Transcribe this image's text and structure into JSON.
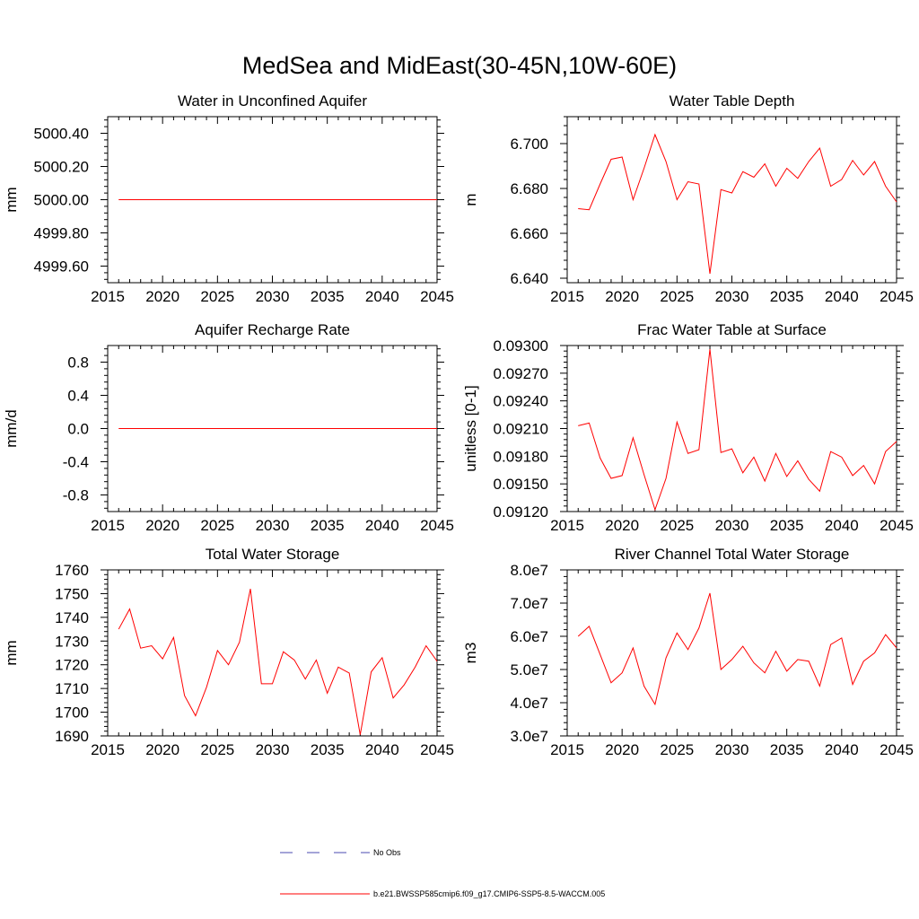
{
  "figure": {
    "title": "MedSea and MidEast(30-45N,10W-60E)",
    "legend": [
      {
        "label": "No Obs",
        "color": "#4a4ab0",
        "style": "dashed"
      },
      {
        "label": "b.e21.BWSSP585cmip6.f09_g17.CMIP6-SSP5-8.5-WACCM.005",
        "color": "#ff0000",
        "style": "solid"
      }
    ]
  },
  "chart_data": [
    {
      "type": "line",
      "title": "Water in Unconfined Aquifer",
      "xlabel": "",
      "ylabel": "mm",
      "xlim": [
        2015,
        2045
      ],
      "ylim": [
        4999.5,
        5000.5
      ],
      "xticks": [
        2015,
        2020,
        2025,
        2030,
        2035,
        2040,
        2045
      ],
      "yticks": [
        4999.6,
        4999.8,
        5000.0,
        5000.2,
        5000.4
      ],
      "ytick_labels": [
        "4999.60",
        "4999.80",
        "5000.00",
        "5000.20",
        "5000.40"
      ],
      "x": [
        2016,
        2017,
        2018,
        2019,
        2020,
        2021,
        2022,
        2023,
        2024,
        2025,
        2026,
        2027,
        2028,
        2029,
        2030,
        2031,
        2032,
        2033,
        2034,
        2035,
        2036,
        2037,
        2038,
        2039,
        2040,
        2041,
        2042,
        2043,
        2044,
        2045
      ],
      "series": [
        {
          "name": "b.e21.BWSSP585cmip6.f09_g17.CMIP6-SSP5-8.5-WACCM.005",
          "color": "#ff0000",
          "values": [
            5000,
            5000,
            5000,
            5000,
            5000,
            5000,
            5000,
            5000,
            5000,
            5000,
            5000,
            5000,
            5000,
            5000,
            5000,
            5000,
            5000,
            5000,
            5000,
            5000,
            5000,
            5000,
            5000,
            5000,
            5000,
            5000,
            5000,
            5000,
            5000,
            5000
          ]
        }
      ]
    },
    {
      "type": "line",
      "title": "Water Table Depth",
      "xlabel": "",
      "ylabel": "m",
      "xlim": [
        2015,
        2045
      ],
      "ylim": [
        6.638,
        6.712
      ],
      "xticks": [
        2015,
        2020,
        2025,
        2030,
        2035,
        2040,
        2045
      ],
      "yticks": [
        6.64,
        6.66,
        6.68,
        6.7
      ],
      "ytick_labels": [
        "6.640",
        "6.660",
        "6.680",
        "6.700"
      ],
      "x": [
        2016,
        2017,
        2018,
        2019,
        2020,
        2021,
        2022,
        2023,
        2024,
        2025,
        2026,
        2027,
        2028,
        2029,
        2030,
        2031,
        2032,
        2033,
        2034,
        2035,
        2036,
        2037,
        2038,
        2039,
        2040,
        2041,
        2042,
        2043,
        2044,
        2045
      ],
      "series": [
        {
          "name": "b.e21.BWSSP585cmip6.f09_g17.CMIP6-SSP5-8.5-WACCM.005",
          "color": "#ff0000",
          "values": [
            6.671,
            6.6705,
            6.682,
            6.693,
            6.694,
            6.675,
            6.689,
            6.704,
            6.692,
            6.675,
            6.683,
            6.682,
            6.642,
            6.6795,
            6.678,
            6.6875,
            6.685,
            6.691,
            6.681,
            6.689,
            6.6845,
            6.692,
            6.698,
            6.681,
            6.684,
            6.6925,
            6.686,
            6.692,
            6.681,
            6.674
          ]
        }
      ]
    },
    {
      "type": "line",
      "title": "Aquifer Recharge Rate",
      "xlabel": "",
      "ylabel": "mm/d",
      "xlim": [
        2015,
        2045
      ],
      "ylim": [
        -1.0,
        1.0
      ],
      "xticks": [
        2015,
        2020,
        2025,
        2030,
        2035,
        2040,
        2045
      ],
      "yticks": [
        -0.8,
        -0.4,
        0.0,
        0.4,
        0.8
      ],
      "ytick_labels": [
        "-0.8",
        "-0.4",
        "0.0",
        "0.4",
        "0.8"
      ],
      "x": [
        2016,
        2017,
        2018,
        2019,
        2020,
        2021,
        2022,
        2023,
        2024,
        2025,
        2026,
        2027,
        2028,
        2029,
        2030,
        2031,
        2032,
        2033,
        2034,
        2035,
        2036,
        2037,
        2038,
        2039,
        2040,
        2041,
        2042,
        2043,
        2044,
        2045
      ],
      "series": [
        {
          "name": "b.e21.BWSSP585cmip6.f09_g17.CMIP6-SSP5-8.5-WACCM.005",
          "color": "#ff0000",
          "values": [
            0,
            0,
            0,
            0,
            0,
            0,
            0,
            0,
            0,
            0,
            0,
            0,
            0,
            0,
            0,
            0,
            0,
            0,
            0,
            0,
            0,
            0,
            0,
            0,
            0,
            0,
            0,
            0,
            0,
            0
          ]
        }
      ]
    },
    {
      "type": "line",
      "title": "Frac Water Table at Surface",
      "xlabel": "",
      "ylabel": "unitless [0-1]",
      "xlim": [
        2015,
        2045
      ],
      "ylim": [
        0.0912,
        0.093
      ],
      "xticks": [
        2015,
        2020,
        2025,
        2030,
        2035,
        2040,
        2045
      ],
      "yticks": [
        0.0912,
        0.0915,
        0.0918,
        0.0921,
        0.0924,
        0.0927,
        0.093
      ],
      "ytick_labels": [
        "0.09120",
        "0.09150",
        "0.09180",
        "0.09210",
        "0.09240",
        "0.09270",
        "0.09300"
      ],
      "x": [
        2016,
        2017,
        2018,
        2019,
        2020,
        2021,
        2022,
        2023,
        2024,
        2025,
        2026,
        2027,
        2028,
        2029,
        2030,
        2031,
        2032,
        2033,
        2034,
        2035,
        2036,
        2037,
        2038,
        2039,
        2040,
        2041,
        2042,
        2043,
        2044,
        2045
      ],
      "series": [
        {
          "name": "b.e21.BWSSP585cmip6.f09_g17.CMIP6-SSP5-8.5-WACCM.005",
          "color": "#ff0000",
          "values": [
            0.09213,
            0.09216,
            0.09178,
            0.09156,
            0.09159,
            0.092,
            0.0916,
            0.09122,
            0.09156,
            0.09217,
            0.09183,
            0.09187,
            0.09296,
            0.09184,
            0.09188,
            0.09162,
            0.09179,
            0.09153,
            0.09183,
            0.09158,
            0.09175,
            0.09155,
            0.09142,
            0.09185,
            0.09179,
            0.09159,
            0.0917,
            0.0915,
            0.09185,
            0.09196
          ]
        }
      ]
    },
    {
      "type": "line",
      "title": "Total Water Storage",
      "xlabel": "",
      "ylabel": "mm",
      "xlim": [
        2015,
        2045
      ],
      "ylim": [
        1690,
        1760
      ],
      "xticks": [
        2015,
        2020,
        2025,
        2030,
        2035,
        2040,
        2045
      ],
      "yticks": [
        1690,
        1700,
        1710,
        1720,
        1730,
        1740,
        1750,
        1760
      ],
      "ytick_labels": [
        "1690",
        "1700",
        "1710",
        "1720",
        "1730",
        "1740",
        "1750",
        "1760"
      ],
      "x": [
        2016,
        2017,
        2018,
        2019,
        2020,
        2021,
        2022,
        2023,
        2024,
        2025,
        2026,
        2027,
        2028,
        2029,
        2030,
        2031,
        2032,
        2033,
        2034,
        2035,
        2036,
        2037,
        2038,
        2039,
        2040,
        2041,
        2042,
        2043,
        2044,
        2045
      ],
      "series": [
        {
          "name": "b.e21.BWSSP585cmip6.f09_g17.CMIP6-SSP5-8.5-WACCM.005",
          "color": "#ff0000",
          "values": [
            1735,
            1743.5,
            1727,
            1728,
            1722.5,
            1731.5,
            1707,
            1698.5,
            1710.5,
            1726,
            1720,
            1729.5,
            1752,
            1712,
            1712,
            1725.5,
            1722,
            1714,
            1722,
            1708,
            1719,
            1716.5,
            1690.5,
            1717,
            1723,
            1706,
            1711.5,
            1719,
            1728,
            1721.5
          ]
        }
      ]
    },
    {
      "type": "line",
      "title": "River Channel Total Water Storage",
      "xlabel": "",
      "ylabel": "m3",
      "xlim": [
        2015,
        2045
      ],
      "ylim": [
        30000000,
        80000000
      ],
      "xticks": [
        2015,
        2020,
        2025,
        2030,
        2035,
        2040,
        2045
      ],
      "yticks": [
        30000000,
        40000000,
        50000000,
        60000000,
        70000000,
        80000000
      ],
      "ytick_labels": [
        "3.0e7",
        "4.0e7",
        "5.0e7",
        "6.0e7",
        "7.0e7",
        "8.0e7"
      ],
      "x": [
        2016,
        2017,
        2018,
        2019,
        2020,
        2021,
        2022,
        2023,
        2024,
        2025,
        2026,
        2027,
        2028,
        2029,
        2030,
        2031,
        2032,
        2033,
        2034,
        2035,
        2036,
        2037,
        2038,
        2039,
        2040,
        2041,
        2042,
        2043,
        2044,
        2045
      ],
      "series": [
        {
          "name": "b.e21.BWSSP585cmip6.f09_g17.CMIP6-SSP5-8.5-WACCM.005",
          "color": "#ff0000",
          "values": [
            60000000,
            63000000,
            54500000,
            46000000,
            49000000,
            56500000,
            45000000,
            39500000,
            53500000,
            61000000,
            56000000,
            62500000,
            73000000,
            50000000,
            53000000,
            57000000,
            52000000,
            49000000,
            55500000,
            49500000,
            53000000,
            52500000,
            45000000,
            57500000,
            59500000,
            45500000,
            52500000,
            55000000,
            60500000,
            56500000
          ]
        }
      ]
    }
  ]
}
